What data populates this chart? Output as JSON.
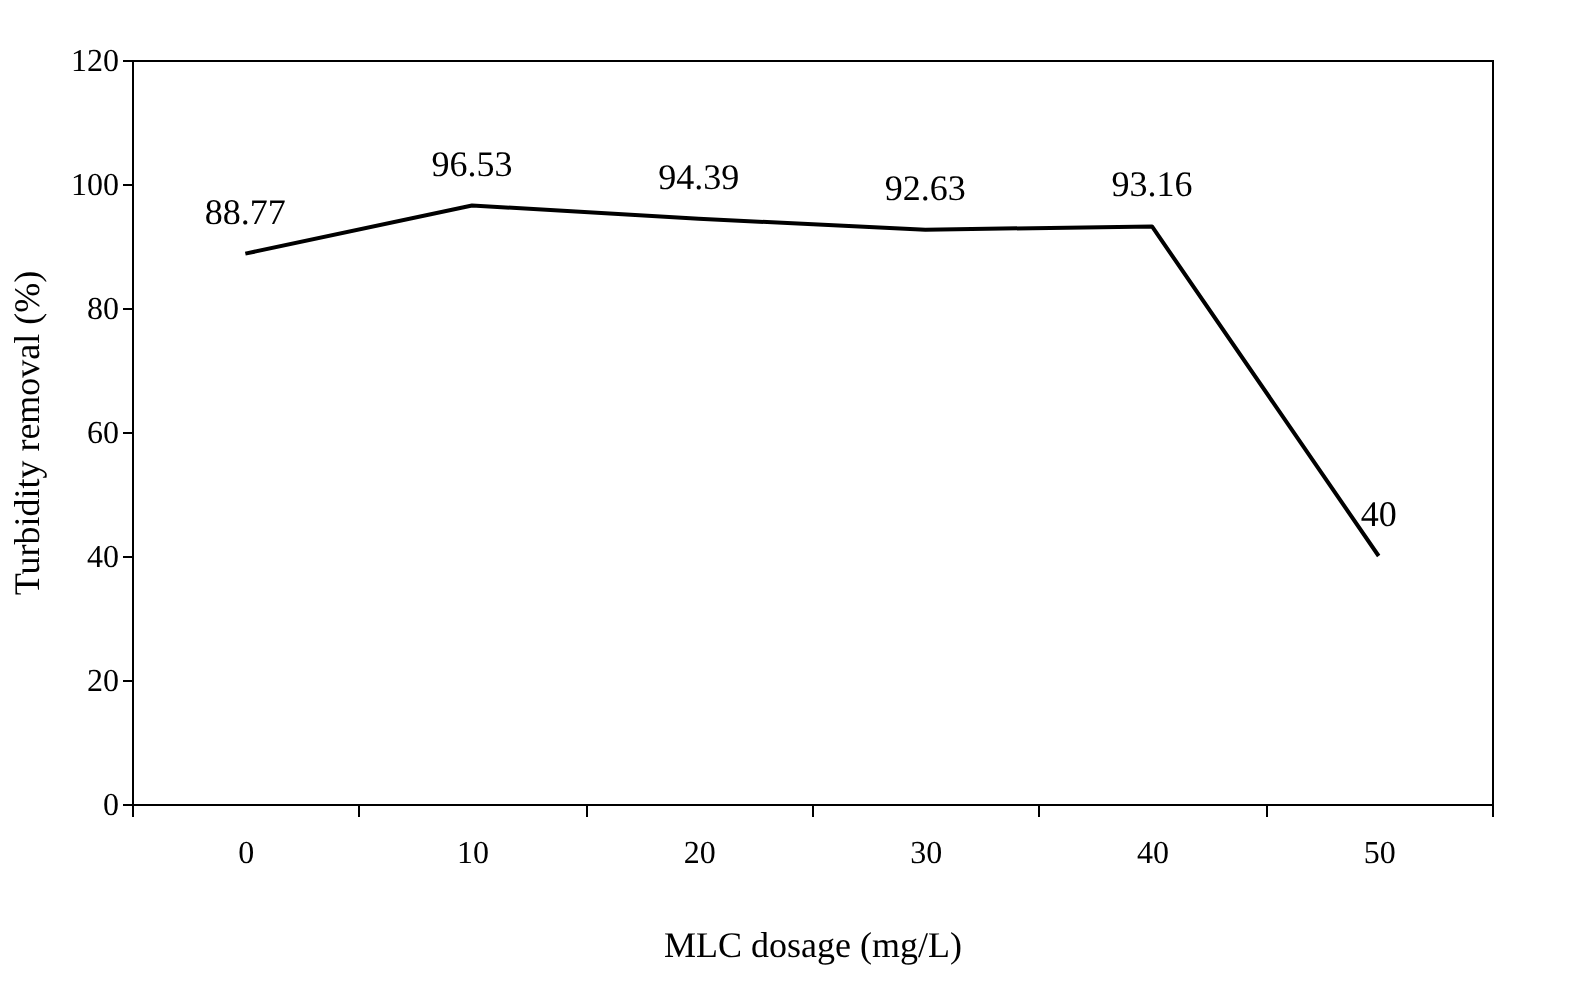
{
  "chart_data": {
    "type": "line",
    "xlabel": "MLC dosage (mg/L)",
    "ylabel": "Turbidity removal (%)",
    "categories": [
      "0",
      "10",
      "20",
      "30",
      "40",
      "50"
    ],
    "series": [
      {
        "color": "#000000",
        "values": [
          88.77,
          96.53,
          94.39,
          92.63,
          93.16,
          40
        ]
      }
    ],
    "ylim": [
      0,
      120
    ],
    "yticks": [
      0,
      20,
      40,
      60,
      80,
      100,
      120
    ],
    "grid": false,
    "legend": false,
    "marker": "none",
    "line_style": "solid",
    "data_labels": true
  }
}
